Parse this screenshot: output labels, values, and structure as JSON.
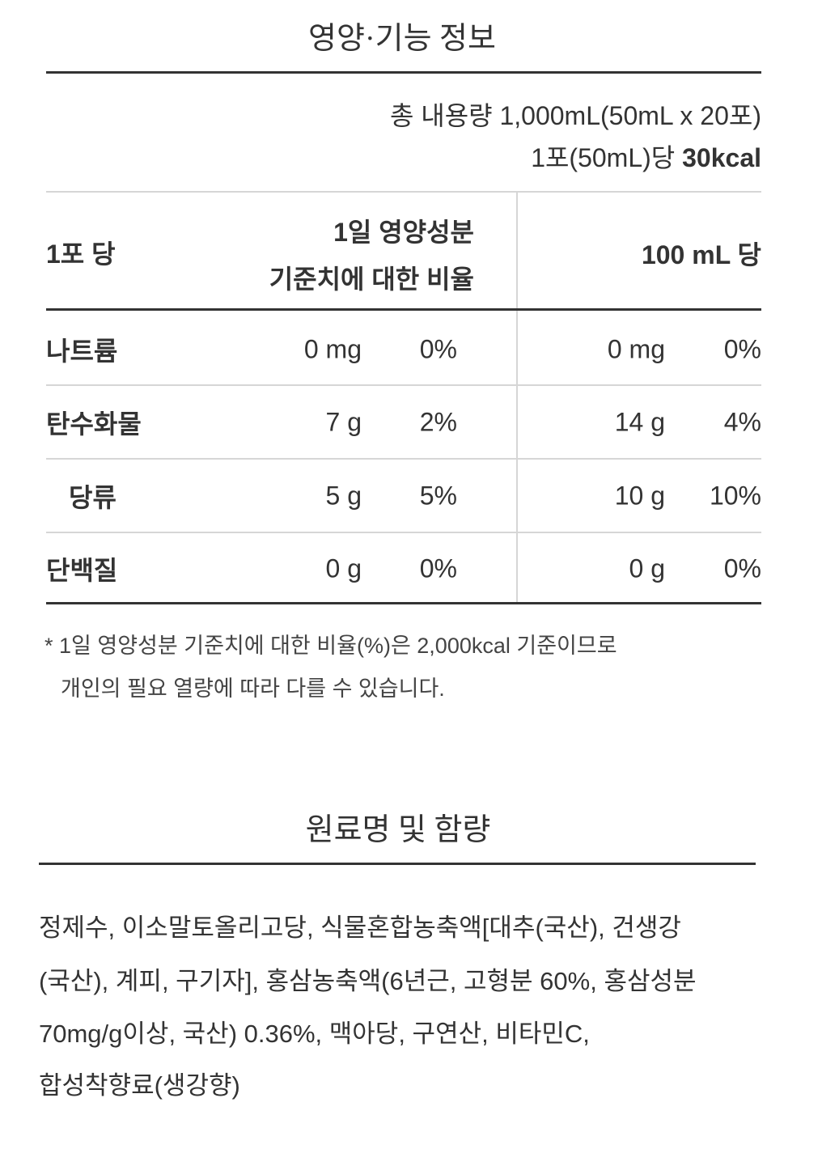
{
  "nutrition": {
    "title": "영양·기능 정보",
    "total_volume": "총 내용량 1,000mL(50mL x 20포)",
    "per_serving_prefix": "1포(50mL)당 ",
    "per_serving_kcal": "30kcal",
    "headers": {
      "per_pack": "1포 당",
      "daily_line1": "1일 영양성분",
      "daily_line2": "기준치에 대한 비율",
      "per_100ml": "100 mL 당"
    },
    "rows": [
      {
        "name": "나트륨",
        "amount": "0 mg",
        "pct": "0%",
        "amount_100": "0 mg",
        "pct_100": "0%"
      },
      {
        "name": "탄수화물",
        "amount": "7 g",
        "pct": "2%",
        "amount_100": "14 g",
        "pct_100": "4%"
      },
      {
        "name": "당류",
        "amount": "5 g",
        "pct": "5%",
        "amount_100": "10 g",
        "pct_100": "10%"
      },
      {
        "name": "단백질",
        "amount": "0 g",
        "pct": "0%",
        "amount_100": "0 g",
        "pct_100": "0%"
      }
    ],
    "footnote_line1": "* 1일 영양성분 기준치에 대한 비율(%)은 2,000kcal 기준이므로",
    "footnote_line2": "개인의 필요 열량에 따라 다를 수 있습니다."
  },
  "ingredients": {
    "title": "원료명 및 함량",
    "lines": [
      "정제수, 이소말토올리고당, 식물혼합농축액[대추(국산), 건생강",
      "(국산), 계피, 구기자], 홍삼농축액(6년근, 고형분 60%, 홍삼성분",
      "70mg/g이상, 국산) 0.36%, 맥아당, 구연산, 비타민C,",
      "합성착향료(생강향)"
    ]
  }
}
